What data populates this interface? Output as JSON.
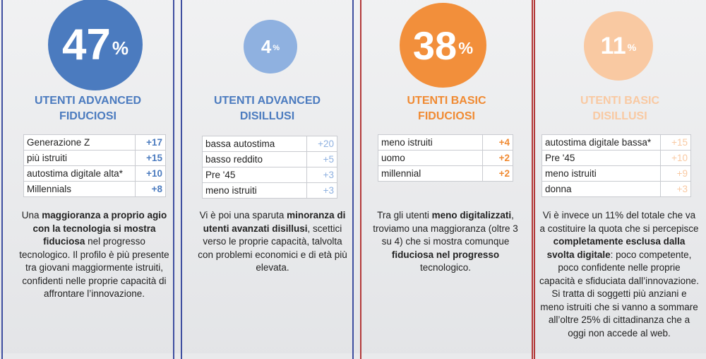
{
  "segments": [
    {
      "value": "47",
      "unit": "%",
      "title_line1": "UTENTI ADVANCED",
      "title_line2": "FIDUCIOSI",
      "rows": [
        {
          "label": "Generazione Z",
          "value": "+17"
        },
        {
          "label": "più istruiti",
          "value": "+15"
        },
        {
          "label": "autostima digitale alta*",
          "value": "+10"
        },
        {
          "label": "Millennials",
          "value": "+8"
        }
      ],
      "description": [
        {
          "text": "Una ",
          "bold": false
        },
        {
          "text": "maggioranza a proprio agio con la tecnologia si mostra fiduciosa",
          "bold": true
        },
        {
          "text": " nel progresso tecnologico. Il profilo è più presente tra giovani maggiormente istruiti, confidenti nelle proprie capacità di affrontare l’innovazione.",
          "bold": false
        }
      ]
    },
    {
      "value": "4",
      "unit": "%",
      "title_line1": "UTENTI ADVANCED",
      "title_line2": "DISILLUSI",
      "rows": [
        {
          "label": "bassa autostima",
          "value": "+20"
        },
        {
          "label": "basso reddito",
          "value": "+5"
        },
        {
          "label": "Pre '45",
          "value": "+3"
        },
        {
          "label": "meno istruiti",
          "value": "+3"
        }
      ],
      "description": [
        {
          "text": "Vi è poi una sparuta ",
          "bold": false
        },
        {
          "text": "minoranza di utenti avanzati disillusi",
          "bold": true
        },
        {
          "text": ", scettici verso le proprie capacità, talvolta con problemi economici e di età più elevata.",
          "bold": false
        }
      ]
    },
    {
      "value": "38",
      "unit": "%",
      "title_line1": "UTENTI BASIC",
      "title_line2": "FIDUCIOSI",
      "rows": [
        {
          "label": "meno istruiti",
          "value": "+4"
        },
        {
          "label": "uomo",
          "value": "+2"
        },
        {
          "label": "millennial",
          "value": "+2"
        }
      ],
      "description": [
        {
          "text": "Tra gli utenti ",
          "bold": false
        },
        {
          "text": "meno digitalizzati",
          "bold": true
        },
        {
          "text": ", troviamo una maggioranza (oltre 3 su 4) che si mostra comunque ",
          "bold": false
        },
        {
          "text": "fiduciosa nel progresso",
          "bold": true
        },
        {
          "text": " tecnologico.",
          "bold": false
        }
      ]
    },
    {
      "value": "11",
      "unit": "%",
      "title_line1": "UTENTI BASIC",
      "title_line2": "DISILLUSI",
      "rows": [
        {
          "label": "autostima digitale bassa*",
          "value": "+15"
        },
        {
          "label": "Pre '45",
          "value": "+10"
        },
        {
          "label": "meno istruiti",
          "value": "+9"
        },
        {
          "label": "donna",
          "value": "+3"
        }
      ],
      "description": [
        {
          "text": "Vi è invece un 11% del totale che va a costituire la quota che si percepisce ",
          "bold": false
        },
        {
          "text": "completamente esclusa dalla svolta digitale",
          "bold": true
        },
        {
          "text": ": poco competente, poco confidente nelle proprie capacità e sfiduciata dall’innovazione. Si tratta di soggetti più anziani e meno istruiti che si vanno a sommare all’oltre 25% di cittadinanza che a oggi non accede al web.",
          "bold": false
        }
      ]
    }
  ],
  "colors": {
    "advanced_fiduciosi": "#4b7bbf",
    "advanced_disillusi": "#8fb1e0",
    "basic_fiduciosi": "#f28f3b",
    "basic_disillusi": "#f9c9a2",
    "divider_blue": "#3f4fa0",
    "divider_red": "#b33a3a"
  }
}
